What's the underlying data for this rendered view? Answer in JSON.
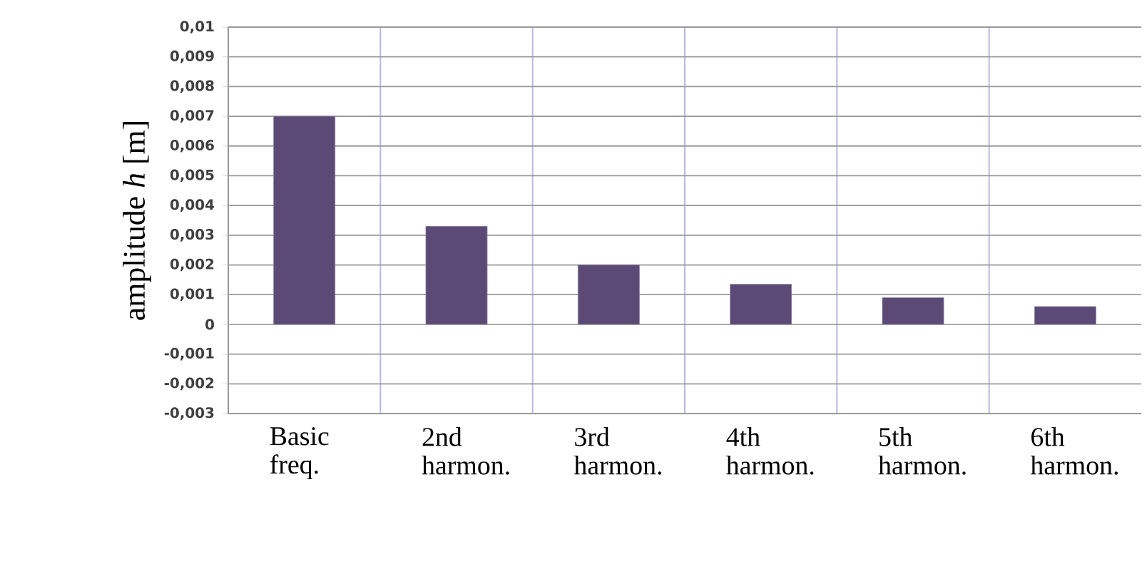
{
  "chart_data": {
    "type": "bar",
    "ylabel": "amplitude *h* [m]",
    "categories": [
      "Basic freq.",
      "2nd harmon.",
      "3rd harmon.",
      "4th harmon.",
      "5th harmon.",
      "6th harmon."
    ],
    "values": [
      0.007,
      0.0033,
      0.002,
      0.00135,
      0.0009,
      0.0006
    ],
    "color": "#5b4a75",
    "ylim": [
      -0.003,
      0.01
    ],
    "yticks": [
      {
        "value": -0.003,
        "label": "-0,003"
      },
      {
        "value": -0.002,
        "label": "-0,002"
      },
      {
        "value": -0.001,
        "label": "-0,001"
      },
      0,
      {
        "value": 0.001,
        "label": "0,001"
      },
      {
        "value": 0.002,
        "label": "0,002"
      },
      {
        "value": 0.003,
        "label": "0,003"
      },
      {
        "value": 0.004,
        "label": "0,004"
      },
      {
        "value": 0.005,
        "label": "0,005"
      },
      {
        "value": 0.006,
        "label": "0,006"
      },
      {
        "value": 0.007,
        "label": "0,007"
      },
      {
        "value": 0.008,
        "label": "0,008"
      },
      {
        "value": 0.009,
        "label": "0,009"
      },
      {
        "value": 0.01,
        "label": "0,01"
      }
    ],
    "grid": true
  }
}
